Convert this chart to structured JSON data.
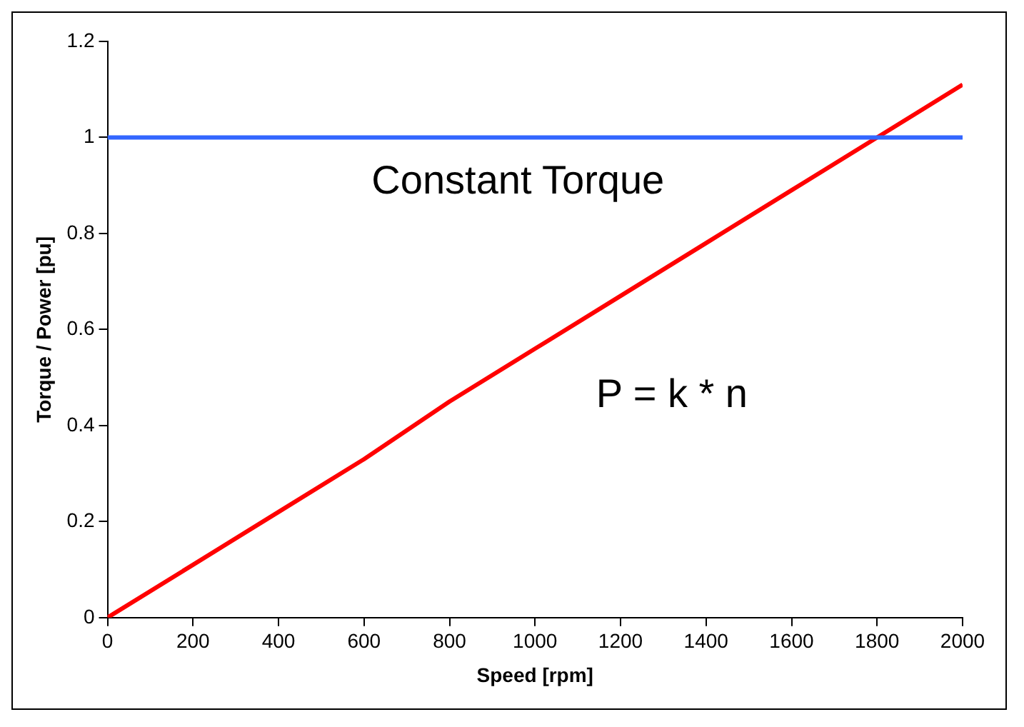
{
  "chart_data": {
    "type": "line",
    "xlabel": "Speed [rpm]",
    "ylabel": "Torque / Power [pu]",
    "xlim": [
      0,
      2000
    ],
    "xticks": [
      0,
      200,
      400,
      600,
      800,
      1000,
      1200,
      1400,
      1600,
      1800,
      2000
    ],
    "ylim": [
      0,
      1.2
    ],
    "yticks": [
      0,
      0.2,
      0.4,
      0.6,
      0.8,
      1,
      1.2
    ],
    "grid": false,
    "legend": false,
    "marker": "none",
    "series": [
      {
        "color": "#3366ff",
        "x": [
          0,
          200,
          400,
          600,
          800,
          1000,
          1200,
          1400,
          1600,
          1800,
          2000
        ],
        "values": [
          1,
          1,
          1,
          1,
          1,
          1,
          1,
          1,
          1,
          1,
          1
        ]
      },
      {
        "color": "#ff0000",
        "x": [
          0,
          200,
          400,
          600,
          800,
          1000,
          1200,
          1400,
          1600,
          1800,
          2000
        ],
        "values": [
          0,
          0.11,
          0.22,
          0.33,
          0.45,
          0.56,
          0.67,
          0.78,
          0.89,
          1.0,
          1.11
        ]
      }
    ],
    "annotations": [
      "Constant Torque",
      "P = k * n"
    ]
  }
}
